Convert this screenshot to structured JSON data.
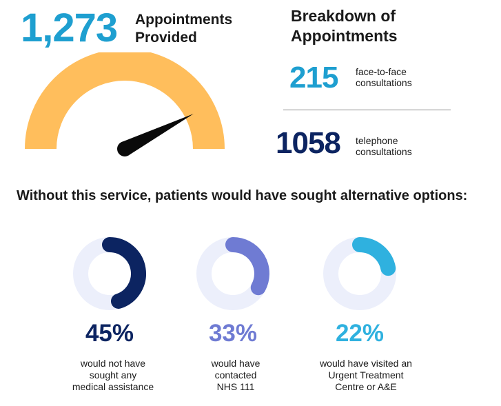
{
  "headline": {
    "total_appointments": "1,273",
    "label_line1": "Appointments",
    "label_line2": "Provided"
  },
  "gauge": {
    "needle_fraction": 0.85,
    "color": "#ffbe5c",
    "needle_color": "#0a0a0a"
  },
  "breakdown": {
    "title_line1": "Breakdown of",
    "title_line2": "Appointments",
    "items": [
      {
        "value": "215",
        "label_line1": "face-to-face",
        "label_line2": "consultations",
        "color": "#1e9fd0"
      },
      {
        "value": "1058",
        "label_line1": "telephone",
        "label_line2": "consultations",
        "color": "#0c2461"
      }
    ]
  },
  "alternatives": {
    "question": "Without this service, patients would have sought alternative options:",
    "items": [
      {
        "percent_value": 45,
        "percent": "45%",
        "line1": "would not have",
        "line2": "sought any",
        "line3": "medical assistance",
        "color": "#0c2461"
      },
      {
        "percent_value": 33,
        "percent": "33%",
        "line1": "would have",
        "line2": "contacted",
        "line3": "NHS 111",
        "color": "#6f7bd3"
      },
      {
        "percent_value": 22,
        "percent": "22%",
        "line1": "would have visited an",
        "line2": "Urgent Treatment",
        "line3": "Centre or A&E",
        "color": "#2fb1df"
      }
    ],
    "track_color": "#eceffb"
  }
}
